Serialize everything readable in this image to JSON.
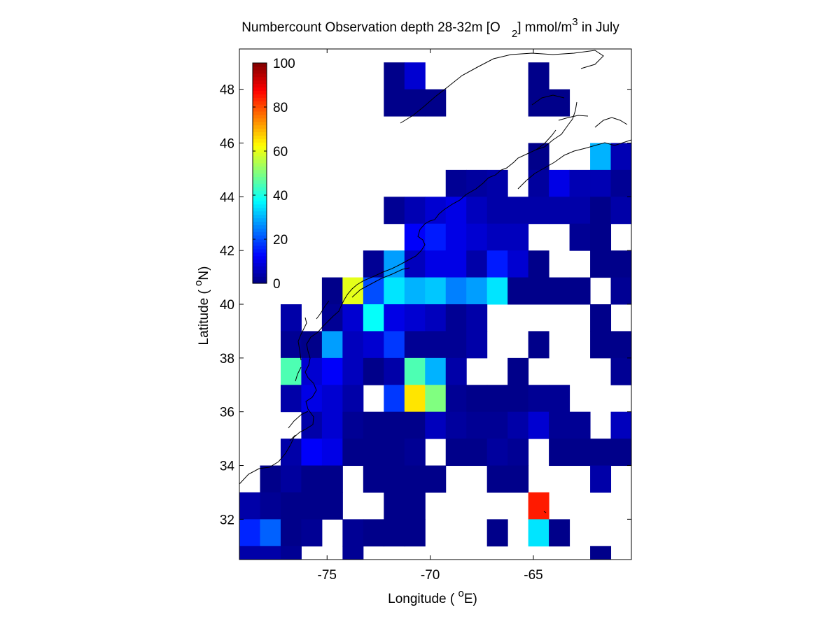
{
  "chart_data": {
    "type": "heatmap",
    "title": {
      "main": "Numbercount Observation depth 28-32m [O",
      "sub": "2",
      "mid": "] mmol/m",
      "sup": "3",
      "tail": " in July"
    },
    "xlabel": {
      "text": "Longitude ( ",
      "sup": "o",
      "tail": "E)"
    },
    "ylabel": {
      "text": "Latitude ( ",
      "sup": "o",
      "tail": "N)"
    },
    "xlim": [
      -79.25,
      -60.25
    ],
    "ylim": [
      30.5,
      49.5
    ],
    "xticks": [
      -75,
      -70,
      -65
    ],
    "xtick_labels": [
      "-75",
      "-70",
      "-65"
    ],
    "yticks": [
      32,
      34,
      36,
      38,
      40,
      42,
      44,
      46,
      48
    ],
    "ytick_labels": [
      "32",
      "34",
      "36",
      "38",
      "40",
      "42",
      "44",
      "46",
      "48"
    ],
    "colorbar": {
      "range": [
        0,
        100
      ],
      "ticks": [
        0,
        20,
        40,
        60,
        80,
        100
      ],
      "tick_labels": [
        "0",
        "20",
        "40",
        "60",
        "80",
        "100"
      ],
      "colormap": "jet",
      "placement": "inside-top-left"
    },
    "grid": false,
    "cell_size_deg": 1,
    "x_centers": [
      -78.75,
      -77.75,
      -76.75,
      -75.75,
      -74.75,
      -73.75,
      -72.75,
      -71.75,
      -70.75,
      -69.75,
      -68.75,
      -67.75,
      -66.75,
      -65.75,
      -64.75,
      -63.75,
      -62.75,
      -61.75,
      -60.75
    ],
    "y_centers": [
      48.5,
      47.5,
      46.5,
      45.5,
      44.5,
      43.5,
      42.5,
      41.5,
      40.5,
      39.5,
      38.5,
      37.5,
      36.5,
      35.5,
      34.5,
      33.5,
      32.5,
      31.5,
      30.5
    ],
    "values": [
      [
        null,
        null,
        null,
        null,
        null,
        null,
        null,
        1,
        8,
        null,
        null,
        null,
        null,
        null,
        1,
        null,
        null,
        null,
        null
      ],
      [
        null,
        null,
        null,
        null,
        null,
        null,
        null,
        1,
        1,
        1,
        null,
        null,
        null,
        null,
        1,
        1,
        null,
        null,
        null
      ],
      [
        null,
        null,
        null,
        null,
        null,
        null,
        null,
        null,
        null,
        null,
        null,
        null,
        null,
        null,
        null,
        null,
        null,
        null,
        null
      ],
      [
        null,
        null,
        null,
        null,
        null,
        null,
        null,
        null,
        null,
        null,
        null,
        null,
        null,
        null,
        1,
        null,
        null,
        30,
        5
      ],
      [
        null,
        null,
        null,
        null,
        null,
        null,
        null,
        null,
        null,
        null,
        2,
        3,
        4,
        null,
        3,
        10,
        5,
        5,
        2
      ],
      [
        null,
        null,
        null,
        null,
        null,
        null,
        null,
        2,
        5,
        8,
        10,
        6,
        4,
        4,
        4,
        4,
        4,
        1,
        4
      ],
      [
        null,
        null,
        null,
        null,
        null,
        null,
        null,
        null,
        12,
        15,
        10,
        8,
        6,
        6,
        null,
        null,
        2,
        1,
        null
      ],
      [
        null,
        null,
        null,
        null,
        null,
        null,
        2,
        28,
        6,
        10,
        10,
        4,
        15,
        8,
        1,
        null,
        null,
        1,
        1
      ],
      [
        null,
        null,
        null,
        null,
        1,
        60,
        20,
        35,
        30,
        32,
        25,
        28,
        35,
        1,
        1,
        1,
        1,
        null,
        2
      ],
      [
        null,
        null,
        4,
        null,
        2,
        8,
        38,
        10,
        8,
        6,
        2,
        4,
        null,
        null,
        null,
        null,
        null,
        1,
        null
      ],
      [
        null,
        null,
        2,
        1,
        28,
        6,
        8,
        18,
        2,
        2,
        2,
        4,
        null,
        null,
        1,
        null,
        null,
        1,
        1
      ],
      [
        null,
        null,
        45,
        8,
        12,
        6,
        1,
        4,
        45,
        30,
        4,
        null,
        null,
        1,
        null,
        null,
        null,
        null,
        2
      ],
      [
        null,
        null,
        4,
        10,
        8,
        4,
        null,
        18,
        65,
        50,
        2,
        1,
        1,
        1,
        2,
        2,
        null,
        null,
        null
      ],
      [
        null,
        null,
        null,
        4,
        8,
        2,
        1,
        1,
        1,
        6,
        3,
        2,
        2,
        4,
        8,
        2,
        2,
        null,
        6
      ],
      [
        null,
        null,
        4,
        12,
        10,
        1,
        1,
        1,
        2,
        null,
        1,
        1,
        3,
        2,
        null,
        1,
        1,
        1,
        1
      ],
      [
        null,
        1,
        3,
        1,
        1,
        null,
        1,
        1,
        1,
        1,
        null,
        null,
        1,
        1,
        null,
        null,
        null,
        4,
        null
      ],
      [
        4,
        2,
        1,
        1,
        1,
        null,
        null,
        1,
        1,
        null,
        null,
        null,
        null,
        null,
        85,
        null,
        null,
        null,
        null
      ],
      [
        16,
        22,
        1,
        2,
        null,
        2,
        1,
        1,
        1,
        null,
        null,
        null,
        1,
        null,
        35,
        1,
        null,
        null,
        null
      ],
      [
        4,
        4,
        2,
        null,
        null,
        2,
        null,
        null,
        null,
        null,
        null,
        null,
        null,
        null,
        null,
        null,
        null,
        1,
        null
      ]
    ]
  }
}
